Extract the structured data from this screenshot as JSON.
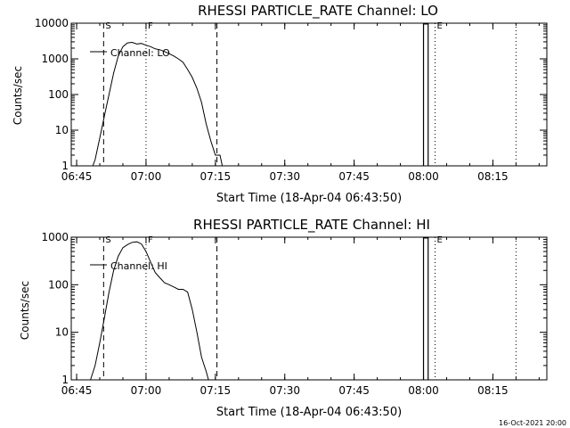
{
  "chart_data": [
    {
      "type": "line",
      "title": "RHESSI PARTICLE_RATE Channel: LO",
      "xlabel": "Start Time (18-Apr-04 06:43:50)",
      "ylabel": "Counts/sec",
      "yscale": "log",
      "ylim": [
        1,
        10000
      ],
      "xlim": [
        "06:43:50",
        "08:26:40"
      ],
      "x_ticks": [
        "06:45",
        "07:00",
        "07:15",
        "07:30",
        "07:45",
        "08:00",
        "08:15"
      ],
      "y_ticks": [
        "1",
        "10",
        "100",
        "1000",
        "10000"
      ],
      "legend_position": "top-left",
      "series": [
        {
          "name": "Channel: LO",
          "x": [
            "06:48:30",
            "06:49:00",
            "06:50:00",
            "06:51:00",
            "06:52:00",
            "06:53:00",
            "06:54:00",
            "06:55:00",
            "06:56:00",
            "06:57:00",
            "06:58:00",
            "06:59:00",
            "07:00:00",
            "07:01:00",
            "07:02:00",
            "07:03:00",
            "07:04:00",
            "07:05:00",
            "07:06:00",
            "07:07:00",
            "07:08:00",
            "07:09:00",
            "07:10:00",
            "07:11:00",
            "07:12:00",
            "07:13:00",
            "07:14:00",
            "07:15:00",
            "07:15:30",
            "07:16:00",
            "07:16:30"
          ],
          "values": [
            1,
            1.5,
            6,
            25,
            100,
            400,
            1200,
            2200,
            2800,
            2900,
            2600,
            2700,
            2400,
            2200,
            1900,
            1800,
            1600,
            1400,
            1200,
            1000,
            800,
            500,
            300,
            150,
            60,
            15,
            5,
            2,
            2,
            2,
            1
          ]
        }
      ],
      "markers": [
        {
          "label": "S",
          "time": "06:50:50",
          "style": "dashed"
        },
        {
          "label": "",
          "time": "07:15:20",
          "style": "dashed"
        },
        {
          "label": "F",
          "time": "07:00:00",
          "style": "dotted"
        },
        {
          "label": "E",
          "time": "08:02:30",
          "style": "dotted"
        },
        {
          "label": "",
          "time": "08:20:00",
          "style": "dotted"
        }
      ],
      "box_window": [
        "08:00:00",
        "08:01:00"
      ]
    },
    {
      "type": "line",
      "title": "RHESSI PARTICLE_RATE Channel: HI",
      "xlabel": "Start Time (18-Apr-04 06:43:50)",
      "ylabel": "Counts/sec",
      "yscale": "log",
      "ylim": [
        1,
        1000
      ],
      "xlim": [
        "06:43:50",
        "08:26:40"
      ],
      "x_ticks": [
        "06:45",
        "07:00",
        "07:15",
        "07:30",
        "07:45",
        "08:00",
        "08:15"
      ],
      "y_ticks": [
        "1",
        "10",
        "100",
        "1000"
      ],
      "legend_position": "top-left",
      "series": [
        {
          "name": "Channel: HI",
          "x": [
            "06:48:00",
            "06:49:00",
            "06:50:00",
            "06:51:00",
            "06:52:00",
            "06:53:00",
            "06:54:00",
            "06:55:00",
            "06:56:00",
            "06:57:00",
            "06:58:00",
            "06:59:00",
            "07:00:00",
            "07:01:00",
            "07:02:00",
            "07:03:00",
            "07:04:00",
            "07:05:00",
            "07:06:00",
            "07:07:00",
            "07:08:00",
            "07:09:00",
            "07:10:00",
            "07:11:00",
            "07:12:00",
            "07:13:00",
            "07:13:30",
            "07:14:00"
          ],
          "values": [
            1,
            2,
            6,
            20,
            70,
            200,
            400,
            600,
            700,
            780,
            800,
            720,
            500,
            300,
            180,
            140,
            110,
            100,
            90,
            80,
            80,
            70,
            30,
            10,
            3,
            1.5,
            1,
            1
          ]
        }
      ],
      "markers": [
        {
          "label": "S",
          "time": "06:50:50",
          "style": "dashed"
        },
        {
          "label": "",
          "time": "07:15:20",
          "style": "dashed"
        },
        {
          "label": "F",
          "time": "07:00:00",
          "style": "dotted"
        },
        {
          "label": "E",
          "time": "08:02:30",
          "style": "dotted"
        },
        {
          "label": "",
          "time": "08:20:00",
          "style": "dotted"
        }
      ],
      "box_window": [
        "08:00:00",
        "08:01:00"
      ]
    }
  ],
  "footer": "16-Oct-2021 20:00"
}
